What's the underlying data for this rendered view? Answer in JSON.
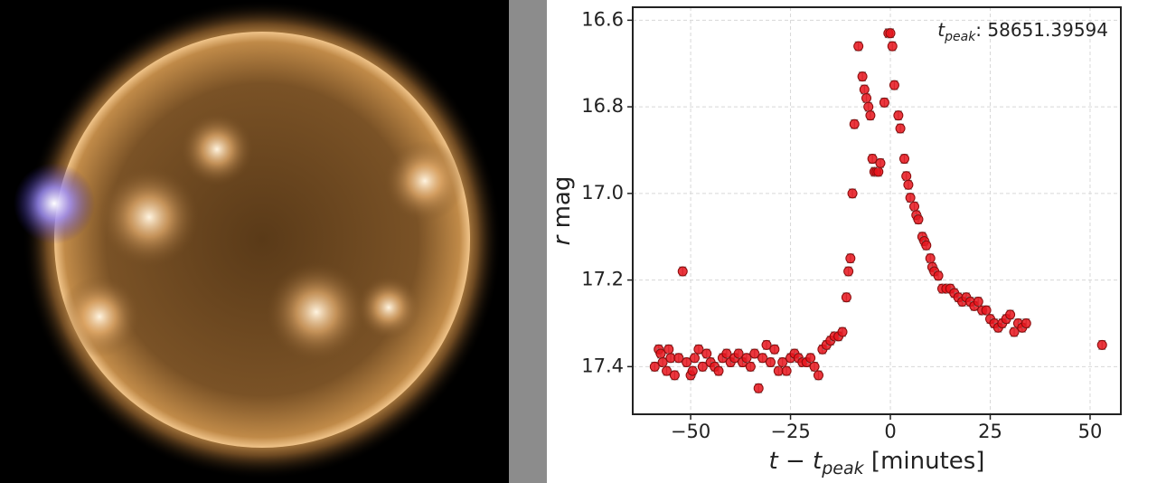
{
  "chart_data": {
    "type": "scatter",
    "annotation": {
      "symbol": "t",
      "subscript": "peak",
      "text": ": 58651.39594"
    },
    "xlabel": {
      "pre": "t − t",
      "subscript": "peak",
      "post": " [minutes]"
    },
    "ylabel": {
      "symbol": "r",
      "text": " mag"
    },
    "x": [
      -59,
      -58,
      -57.5,
      -57,
      -56,
      -55.5,
      -55,
      -54,
      -53,
      -52,
      -51,
      -50,
      -49.5,
      -49,
      -48,
      -47,
      -46,
      -45,
      -44,
      -43,
      -42,
      -41,
      -40,
      -39,
      -38,
      -37,
      -36,
      -35,
      -34,
      -33,
      -32,
      -31,
      -30,
      -29,
      -28,
      -27,
      -26,
      -25,
      -24,
      -23,
      -22,
      -21,
      -20,
      -19,
      -18,
      -17,
      -16,
      -15,
      -14,
      -13,
      -12,
      -11,
      -10.5,
      -10,
      -9.5,
      -9,
      -8,
      -7,
      -6.5,
      -6,
      -5.5,
      -5,
      -4.5,
      -4,
      -3.5,
      -3,
      -2.5,
      -1.5,
      -0.5,
      0,
      0.5,
      1,
      2,
      2.5,
      3.5,
      4,
      4.5,
      5,
      6,
      6.5,
      7,
      8,
      8.5,
      9,
      10,
      10.5,
      11,
      12,
      13,
      14,
      15,
      16,
      17,
      18,
      19,
      20,
      21,
      22,
      23,
      24,
      25,
      26,
      27,
      28,
      29,
      30,
      31,
      32,
      33,
      34,
      53
    ],
    "values": [
      17.4,
      17.36,
      17.37,
      17.39,
      17.41,
      17.36,
      17.38,
      17.42,
      17.38,
      17.18,
      17.39,
      17.42,
      17.41,
      17.38,
      17.36,
      17.4,
      17.37,
      17.39,
      17.4,
      17.41,
      17.38,
      17.37,
      17.39,
      17.38,
      17.37,
      17.39,
      17.38,
      17.4,
      17.37,
      17.45,
      17.38,
      17.35,
      17.39,
      17.36,
      17.41,
      17.39,
      17.41,
      17.38,
      17.37,
      17.38,
      17.39,
      17.39,
      17.38,
      17.4,
      17.42,
      17.36,
      17.35,
      17.34,
      17.33,
      17.33,
      17.32,
      17.24,
      17.18,
      17.15,
      17.0,
      16.84,
      16.66,
      16.73,
      16.76,
      16.78,
      16.8,
      16.82,
      16.92,
      16.95,
      16.95,
      16.95,
      16.93,
      16.79,
      16.63,
      16.63,
      16.66,
      16.75,
      16.82,
      16.85,
      16.92,
      16.96,
      16.98,
      17.01,
      17.03,
      17.05,
      17.06,
      17.1,
      17.11,
      17.12,
      17.15,
      17.17,
      17.18,
      17.19,
      17.22,
      17.22,
      17.22,
      17.23,
      17.24,
      17.25,
      17.24,
      17.25,
      17.26,
      17.25,
      17.27,
      17.27,
      17.29,
      17.3,
      17.31,
      17.3,
      17.29,
      17.28,
      17.32,
      17.3,
      17.31,
      17.3,
      17.35
    ],
    "yerr": 0.01,
    "color": "#e8141c",
    "xlim": [
      -64.5,
      57.7
    ],
    "ylim": [
      17.51,
      16.57
    ],
    "xticks": [
      {
        "value": -50,
        "label": "−50"
      },
      {
        "value": -25,
        "label": "−25"
      },
      0,
      25,
      50
    ],
    "yticks": [
      16.6,
      16.8,
      {
        "value": 17,
        "label": "17.0"
      },
      17.2,
      17.4
    ],
    "grid": true
  }
}
